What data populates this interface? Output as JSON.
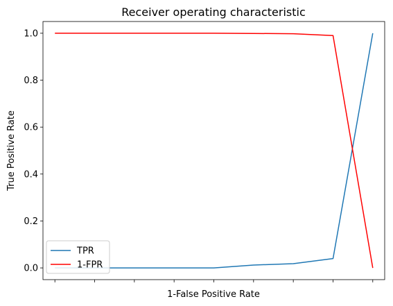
{
  "chart_data": {
    "type": "line",
    "title": "Receiver operating characteristic",
    "xlabel": "1-False Positive Rate",
    "ylabel": "True Positive Rate",
    "x": [
      0,
      1,
      2,
      3,
      4,
      5,
      6,
      7,
      8
    ],
    "xlim": [
      -0.3,
      8.3
    ],
    "ylim": [
      -0.05,
      1.05
    ],
    "yticks": [
      0.0,
      0.2,
      0.4,
      0.6,
      0.8,
      1.0
    ],
    "ytick_labels": [
      "0.0",
      "0.2",
      "0.4",
      "0.6",
      "0.8",
      "1.0"
    ],
    "xtick_labels": [],
    "grid": false,
    "legend_placement": "lower-left",
    "series": [
      {
        "name": "TPR",
        "color": "#1f77b4",
        "values": [
          0.0,
          0.0,
          0.0,
          0.0,
          0.0,
          0.012,
          0.018,
          0.04,
          1.0
        ]
      },
      {
        "name": "1-FPR",
        "color": "#ff0000",
        "values": [
          1.0,
          1.0,
          1.0,
          1.0,
          1.0,
          0.999,
          0.998,
          0.99,
          0.0
        ]
      }
    ]
  }
}
